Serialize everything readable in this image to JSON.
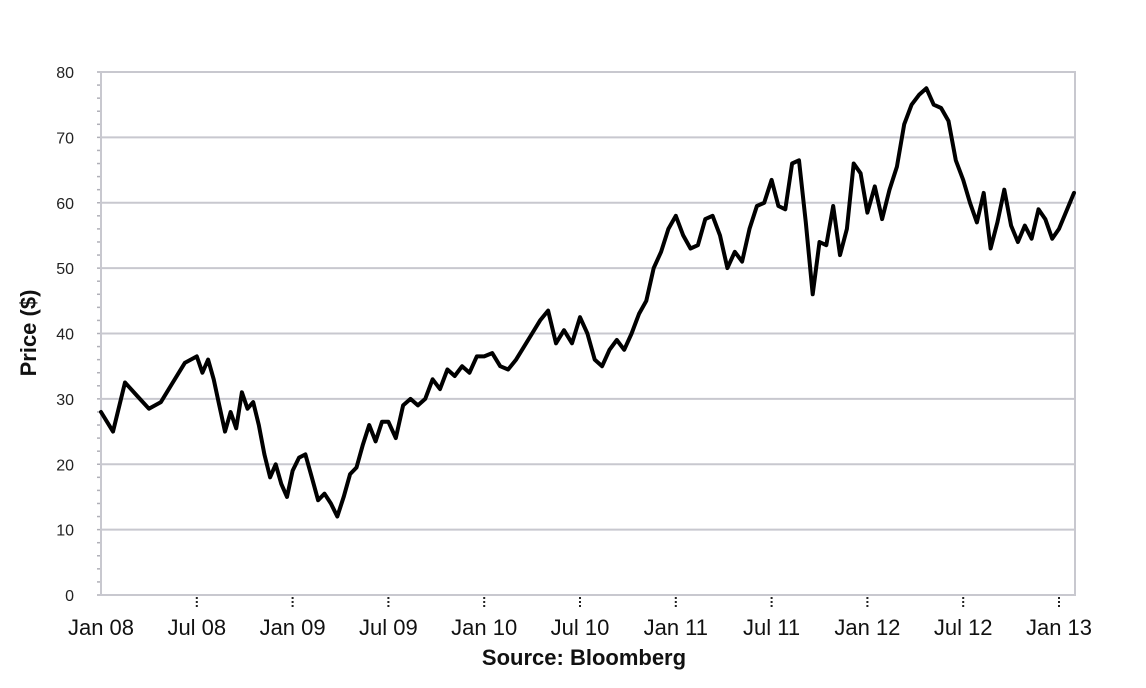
{
  "chart_data": {
    "type": "line",
    "title": "",
    "ylabel": "Price ($)",
    "xlabel": "Source: Bloomberg",
    "ylim": [
      0,
      80
    ],
    "yticks": [
      "0",
      "10",
      "20",
      "30",
      "40",
      "50",
      "60",
      "70",
      "80"
    ],
    "xticks": [
      "Jan 08",
      "Jul 08",
      "Jan 09",
      "Jul 09",
      "Jan 10",
      "Jul 10",
      "Jan 11",
      "Jul 11",
      "Jan 12",
      "Jul 12",
      "Jan 13"
    ],
    "grid": "horizontal",
    "series": [
      {
        "color": "#000000",
        "points": [
          [
            "Jan 08",
            28
          ],
          [
            "Jan 08",
            25
          ],
          [
            "Jan 08",
            32.5
          ],
          [
            "Jan 08",
            30.5
          ],
          [
            "Jan 08",
            28.5
          ],
          [
            "Jan 08",
            29.5
          ],
          [
            "Jan 08",
            32.5
          ],
          [
            "Jan 08",
            35.5
          ],
          [
            "Jul 08",
            36.5
          ],
          [
            "Jul 08",
            34
          ],
          [
            "Jul 08",
            36
          ],
          [
            "Jul 08",
            33
          ],
          [
            "Jul 08",
            29
          ],
          [
            "Jul 08",
            25
          ],
          [
            "Jul 08",
            28
          ],
          [
            "Jul 08",
            25.5
          ],
          [
            "Jul 08",
            31
          ],
          [
            "Jul 08",
            28.5
          ],
          [
            "Jul 08",
            29.5
          ],
          [
            "Jul 08",
            26
          ],
          [
            "Jul 08",
            21.5
          ],
          [
            "Jul 08",
            18
          ],
          [
            "Jul 08",
            20
          ],
          [
            "Jul 08",
            17
          ],
          [
            "Jul 08",
            15
          ],
          [
            "Jan 09",
            19
          ],
          [
            "Jan 09",
            21
          ],
          [
            "Jan 09",
            21.5
          ],
          [
            "Jan 09",
            18
          ],
          [
            "Jan 09",
            14.5
          ],
          [
            "Jan 09",
            15.5
          ],
          [
            "Jan 09",
            14
          ],
          [
            "Jan 09",
            12
          ],
          [
            "Jan 09",
            15
          ],
          [
            "Jan 09",
            18.5
          ],
          [
            "Jan 09",
            19.5
          ],
          [
            "Jan 09",
            23
          ],
          [
            "Jan 09",
            26
          ],
          [
            "Jan 09",
            23.5
          ],
          [
            "Jan 09",
            26.5
          ],
          [
            "Jul 09",
            26.5
          ],
          [
            "Jul 09",
            24
          ],
          [
            "Jul 09",
            29
          ],
          [
            "Jul 09",
            30
          ],
          [
            "Jul 09",
            29
          ],
          [
            "Jul 09",
            30
          ],
          [
            "Jul 09",
            33
          ],
          [
            "Jul 09",
            31.5
          ],
          [
            "Jul 09",
            34.5
          ],
          [
            "Jul 09",
            33.5
          ],
          [
            "Jul 09",
            35
          ],
          [
            "Jul 09",
            34
          ],
          [
            "Jul 09",
            36.5
          ],
          [
            "Jan 10",
            36.5
          ],
          [
            "Jan 10",
            37
          ],
          [
            "Jan 10",
            35
          ],
          [
            "Jan 10",
            34.5
          ],
          [
            "Jan 10",
            36
          ],
          [
            "Jan 10",
            38
          ],
          [
            "Jan 10",
            40
          ],
          [
            "Jan 10",
            42
          ],
          [
            "Jan 10",
            43.5
          ],
          [
            "Jan 10",
            38.5
          ],
          [
            "Jan 10",
            40.5
          ],
          [
            "Jan 10",
            38.5
          ],
          [
            "Jul 10",
            42.5
          ],
          [
            "Jul 10",
            40
          ],
          [
            "Jul 10",
            36
          ],
          [
            "Jul 10",
            35
          ],
          [
            "Jul 10",
            37.5
          ],
          [
            "Jul 10",
            39
          ],
          [
            "Jul 10",
            37.5
          ],
          [
            "Jul 10",
            40
          ],
          [
            "Jul 10",
            43
          ],
          [
            "Jul 10",
            45
          ],
          [
            "Jul 10",
            50
          ],
          [
            "Jul 10",
            52.5
          ],
          [
            "Jul 10",
            56
          ],
          [
            "Jan 11",
            58
          ],
          [
            "Jan 11",
            55
          ],
          [
            "Jan 11",
            53
          ],
          [
            "Jan 11",
            53.5
          ],
          [
            "Jan 11",
            57.5
          ],
          [
            "Jan 11",
            58
          ],
          [
            "Jan 11",
            55
          ],
          [
            "Jan 11",
            50
          ],
          [
            "Jan 11",
            52.5
          ],
          [
            "Jan 11",
            51
          ],
          [
            "Jan 11",
            56
          ],
          [
            "Jan 11",
            59.5
          ],
          [
            "Jan 11",
            60
          ],
          [
            "Jul 11",
            63.5
          ],
          [
            "Jul 11",
            59.5
          ],
          [
            "Jul 11",
            59
          ],
          [
            "Jul 11",
            66
          ],
          [
            "Jul 11",
            66.5
          ],
          [
            "Jul 11",
            57
          ],
          [
            "Jul 11",
            46
          ],
          [
            "Jul 11",
            54
          ],
          [
            "Jul 11",
            53.5
          ],
          [
            "Jul 11",
            59.5
          ],
          [
            "Jul 11",
            52
          ],
          [
            "Jul 11",
            56
          ],
          [
            "Jul 11",
            66
          ],
          [
            "Jul 11",
            64.5
          ],
          [
            "Jan 12",
            58.5
          ],
          [
            "Jan 12",
            62.5
          ],
          [
            "Jan 12",
            57.5
          ],
          [
            "Jan 12",
            62
          ],
          [
            "Jan 12",
            65.5
          ],
          [
            "Jan 12",
            72
          ],
          [
            "Jan 12",
            75
          ],
          [
            "Jan 12",
            76.5
          ],
          [
            "Jan 12",
            77.5
          ],
          [
            "Jan 12",
            75
          ],
          [
            "Jan 12",
            74.5
          ],
          [
            "Jan 12",
            72.5
          ],
          [
            "Jan 12",
            66.5
          ],
          [
            "Jul 12",
            63.5
          ],
          [
            "Jul 12",
            60
          ],
          [
            "Jul 12",
            57
          ],
          [
            "Jul 12",
            61.5
          ],
          [
            "Jul 12",
            53
          ],
          [
            "Jul 12",
            57
          ],
          [
            "Jul 12",
            62
          ],
          [
            "Jul 12",
            56.5
          ],
          [
            "Jul 12",
            54
          ],
          [
            "Jul 12",
            56.5
          ],
          [
            "Jul 12",
            54.5
          ],
          [
            "Jul 12",
            59
          ],
          [
            "Jul 12",
            57.5
          ],
          [
            "Jul 12",
            54.5
          ],
          [
            "Jan 13",
            56
          ],
          [
            "Jan 13",
            61.5
          ]
        ]
      }
    ]
  }
}
